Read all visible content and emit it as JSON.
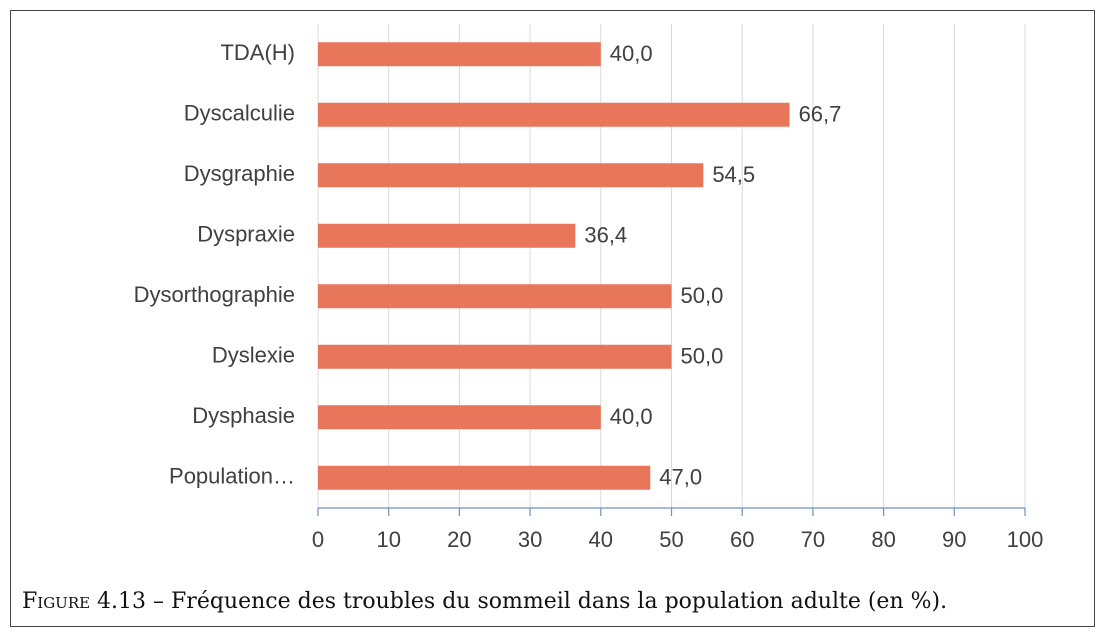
{
  "chart_data": {
    "type": "bar",
    "orientation": "horizontal",
    "categories": [
      "TDA(H)",
      "Dyscalculie",
      "Dysgraphie",
      "Dyspraxie",
      "Dysorthographie",
      "Dyslexie",
      "Dysphasie",
      "Population…"
    ],
    "values": [
      40.0,
      66.7,
      54.5,
      36.4,
      50.0,
      50.0,
      40.0,
      47.0
    ],
    "value_labels": [
      "40,0",
      "66,7",
      "54,5",
      "36,4",
      "50,0",
      "50,0",
      "40,0",
      "47,0"
    ],
    "color": "#e8765a",
    "xlim": [
      0,
      100
    ],
    "xticks": [
      0,
      10,
      20,
      30,
      40,
      50,
      60,
      70,
      80,
      90,
      100
    ],
    "grid": true,
    "caption_label": "Figure 4.13",
    "caption": "– Fréquence des troubles du sommeil dans la population adulte (en %)."
  }
}
